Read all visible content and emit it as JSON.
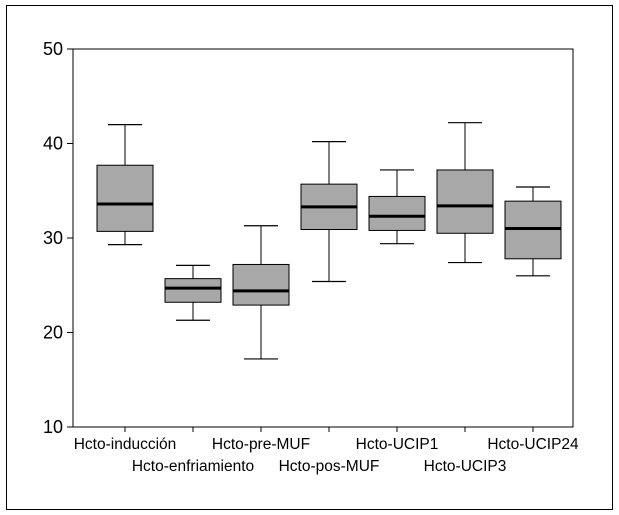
{
  "chart_data": {
    "type": "boxplot",
    "title": "",
    "xlabel": "",
    "ylabel": "",
    "ylim": [
      10,
      50
    ],
    "yticks": [
      "10",
      "20",
      "30",
      "40",
      "50"
    ],
    "grid": false,
    "categories": [
      "Hcto-inducción",
      "Hcto-enfriamiento",
      "Hcto-pre-MUF",
      "Hcto-pos-MUF",
      "Hcto-UCIP1",
      "Hcto-UCIP3",
      "Hcto-UCIP24"
    ],
    "boxes": [
      {
        "whisker_low": 29.3,
        "q1": 30.7,
        "median": 33.6,
        "q3": 37.7,
        "whisker_high": 42.0
      },
      {
        "whisker_low": 21.3,
        "q1": 23.2,
        "median": 24.7,
        "q3": 25.7,
        "whisker_high": 27.1
      },
      {
        "whisker_low": 17.2,
        "q1": 22.9,
        "median": 24.4,
        "q3": 27.2,
        "whisker_high": 31.3
      },
      {
        "whisker_low": 25.4,
        "q1": 30.9,
        "median": 33.3,
        "q3": 35.7,
        "whisker_high": 40.2
      },
      {
        "whisker_low": 29.4,
        "q1": 30.8,
        "median": 32.3,
        "q3": 34.4,
        "whisker_high": 37.2
      },
      {
        "whisker_low": 27.4,
        "q1": 30.5,
        "median": 33.4,
        "q3": 37.2,
        "whisker_high": 42.2
      },
      {
        "whisker_low": 26.0,
        "q1": 27.8,
        "median": 31.0,
        "q3": 33.9,
        "whisker_high": 35.4
      }
    ],
    "colors": {
      "box_fill": "#a8a8a8",
      "line": "#000000",
      "median": "#000000"
    }
  }
}
